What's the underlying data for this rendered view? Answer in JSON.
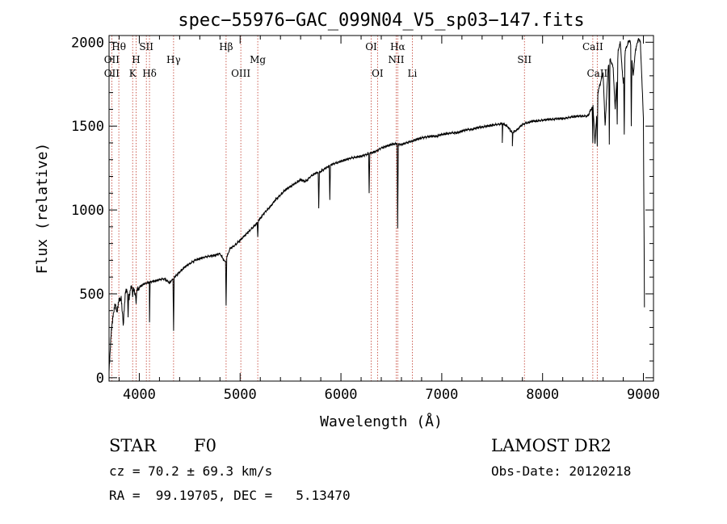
{
  "chart_data": {
    "type": "line",
    "title": "spec−55976−GAC_099N04_V5_sp03−147.fits",
    "xlabel": "Wavelength (Å)",
    "ylabel": "Flux (relative)",
    "xlim": [
      3700,
      9100
    ],
    "ylim": [
      -20,
      2040
    ],
    "x_ticks": [
      4000,
      5000,
      6000,
      7000,
      8000,
      9000
    ],
    "y_ticks": [
      0,
      500,
      1000,
      1500,
      2000
    ],
    "grid": false,
    "series": [
      {
        "x": [
          3700,
          3720,
          3740,
          3760,
          3780,
          3800,
          3820,
          3840,
          3860,
          3880,
          3900,
          3920,
          3940,
          3960,
          3980,
          4000,
          4050,
          4100,
          4150,
          4200,
          4250,
          4300,
          4350,
          4400,
          4450,
          4500,
          4550,
          4600,
          4650,
          4700,
          4750,
          4800,
          4850,
          4900,
          4950,
          5000,
          5050,
          5100,
          5150,
          5200,
          5250,
          5300,
          5350,
          5400,
          5450,
          5500,
          5550,
          5600,
          5650,
          5700,
          5750,
          5800,
          5850,
          5900,
          5950,
          6000,
          6050,
          6100,
          6150,
          6200,
          6250,
          6300,
          6350,
          6400,
          6450,
          6500,
          6550,
          6600,
          6650,
          6700,
          6750,
          6800,
          6850,
          6900,
          6950,
          7000,
          7050,
          7100,
          7150,
          7200,
          7250,
          7300,
          7350,
          7400,
          7450,
          7500,
          7550,
          7600,
          7650,
          7700,
          7750,
          7800,
          7850,
          7900,
          7950,
          8000,
          8050,
          8100,
          8150,
          8200,
          8250,
          8300,
          8350,
          8400,
          8450,
          8480,
          8500,
          8520,
          8550,
          8570,
          8600,
          8620,
          8650,
          8670,
          8700,
          8720,
          8750,
          8770,
          8800,
          8820,
          8850,
          8870,
          8900,
          8920,
          8950,
          8970,
          9000,
          9010
        ],
        "y": [
          50,
          250,
          380,
          430,
          400,
          460,
          480,
          300,
          500,
          520,
          470,
          550,
          530,
          500,
          520,
          540,
          560,
          570,
          575,
          585,
          590,
          565,
          600,
          630,
          660,
          680,
          700,
          710,
          720,
          725,
          730,
          740,
          690,
          770,
          790,
          820,
          850,
          880,
          910,
          950,
          990,
          1020,
          1060,
          1090,
          1120,
          1140,
          1160,
          1180,
          1170,
          1200,
          1220,
          1230,
          1250,
          1270,
          1280,
          1290,
          1300,
          1310,
          1315,
          1320,
          1330,
          1340,
          1350,
          1370,
          1380,
          1390,
          1395,
          1390,
          1400,
          1410,
          1420,
          1430,
          1435,
          1440,
          1440,
          1450,
          1455,
          1460,
          1460,
          1470,
          1480,
          1480,
          1490,
          1495,
          1500,
          1505,
          1510,
          1515,
          1500,
          1460,
          1480,
          1510,
          1520,
          1530,
          1530,
          1535,
          1540,
          1540,
          1545,
          1545,
          1550,
          1555,
          1560,
          1560,
          1560,
          1600,
          1620,
          1400,
          1700,
          1750,
          1820,
          1500,
          1850,
          1900,
          1850,
          1600,
          1950,
          2000,
          1750,
          1950,
          2000,
          2010,
          1800,
          1950,
          2020,
          2000,
          1550,
          420
        ]
      }
    ],
    "dips": [
      {
        "x": 3835,
        "y": 380
      },
      {
        "x": 3889,
        "y": 360
      },
      {
        "x": 3934,
        "y": 480
      },
      {
        "x": 3968,
        "y": 440
      },
      {
        "x": 4101,
        "y": 330
      },
      {
        "x": 4340,
        "y": 280
      },
      {
        "x": 4861,
        "y": 430
      },
      {
        "x": 5175,
        "y": 840
      },
      {
        "x": 5780,
        "y": 1010
      },
      {
        "x": 5890,
        "y": 1060
      },
      {
        "x": 6280,
        "y": 1100
      },
      {
        "x": 6563,
        "y": 890
      },
      {
        "x": 7600,
        "y": 1400
      },
      {
        "x": 7700,
        "y": 1380
      },
      {
        "x": 8498,
        "y": 1400
      },
      {
        "x": 8542,
        "y": 1380
      },
      {
        "x": 8662,
        "y": 1390
      },
      {
        "x": 8740,
        "y": 1510
      },
      {
        "x": 8810,
        "y": 1450
      },
      {
        "x": 8880,
        "y": 1500
      }
    ],
    "lines": [
      {
        "x": 3727,
        "labels": [
          {
            "text": "OII",
            "row": 1
          },
          {
            "text": "OII",
            "row": 2
          }
        ]
      },
      {
        "x": 3797,
        "labels": [
          {
            "text": "Hθ",
            "row": 0
          }
        ]
      },
      {
        "x": 3934,
        "labels": [
          {
            "text": "K",
            "row": 2
          }
        ]
      },
      {
        "x": 3968,
        "labels": [
          {
            "text": "H",
            "row": 1
          }
        ]
      },
      {
        "x": 4070,
        "labels": [
          {
            "text": "SII",
            "row": 0
          }
        ]
      },
      {
        "x": 4101,
        "labels": [
          {
            "text": "Hδ",
            "row": 2
          }
        ]
      },
      {
        "x": 4340,
        "labels": [
          {
            "text": "Hγ",
            "row": 1
          }
        ]
      },
      {
        "x": 4861,
        "labels": [
          {
            "text": "Hβ",
            "row": 0
          }
        ]
      },
      {
        "x": 5007,
        "labels": [
          {
            "text": "OIII",
            "row": 2
          }
        ]
      },
      {
        "x": 5175,
        "labels": [
          {
            "text": "Mg",
            "row": 1
          }
        ]
      },
      {
        "x": 6300,
        "labels": [
          {
            "text": "OI",
            "row": 0
          }
        ]
      },
      {
        "x": 6363,
        "labels": [
          {
            "text": "OI",
            "row": 2
          }
        ]
      },
      {
        "x": 6548,
        "labels": [
          {
            "text": "NII",
            "row": 1
          }
        ]
      },
      {
        "x": 6563,
        "labels": [
          {
            "text": "Hα",
            "row": 0
          }
        ]
      },
      {
        "x": 6708,
        "labels": [
          {
            "text": "Li",
            "row": 2
          }
        ]
      },
      {
        "x": 7820,
        "labels": [
          {
            "text": "SII",
            "row": 1
          }
        ]
      },
      {
        "x": 8498,
        "labels": [
          {
            "text": "CaII",
            "row": 0
          }
        ]
      },
      {
        "x": 8542,
        "labels": [
          {
            "text": "CaII",
            "row": 2
          }
        ]
      }
    ]
  },
  "info": {
    "object_class": "STAR",
    "subclass": "F0",
    "survey": "LAMOST DR2",
    "redshift": "cz = 70.2 ± 69.3 km/s",
    "obs_date": "Obs-Date: 20120218",
    "coords": "RA =  99.19705, DEC =   5.13470"
  }
}
